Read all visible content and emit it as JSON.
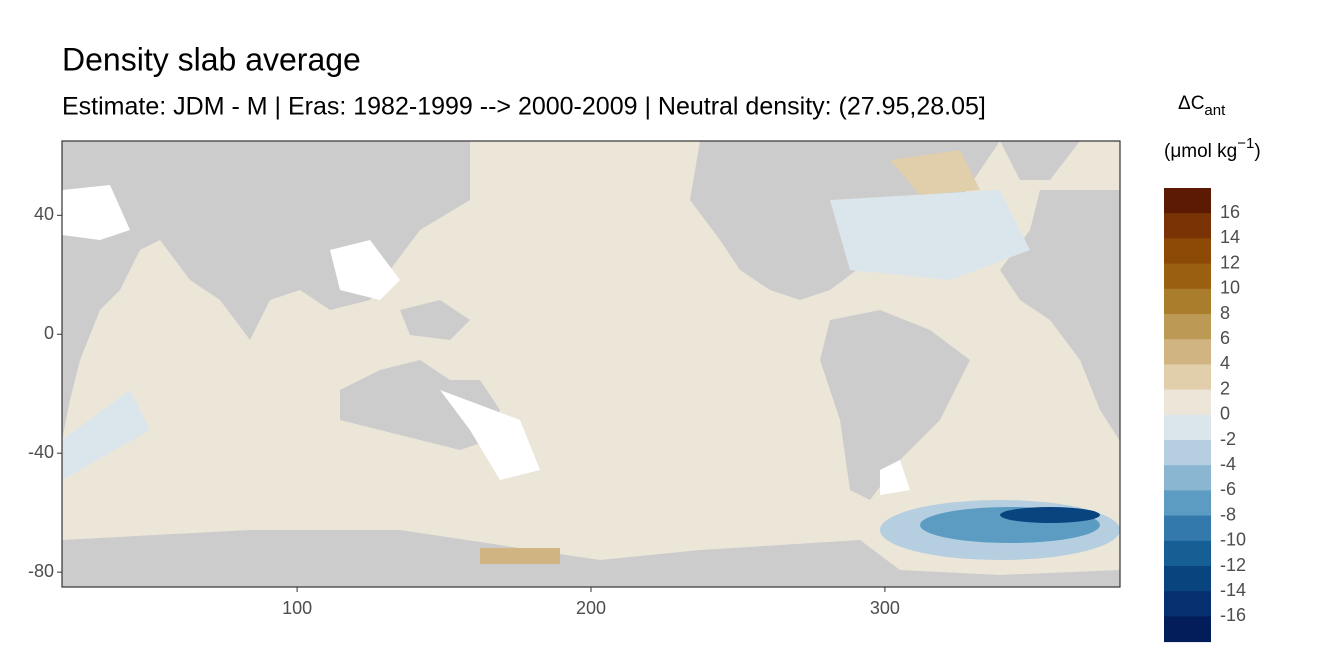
{
  "chart_data": {
    "type": "map",
    "title": "Density slab average",
    "subtitle": "Estimate: JDM - M | Eras: 1982-1999 --> 2000-2009 | Neutral density: (27.95,28.05]",
    "xlim": [
      20,
      380
    ],
    "xticks": [
      100,
      200,
      300
    ],
    "ylim": [
      -85,
      65
    ],
    "yticks": [
      40,
      0,
      -40,
      -80
    ],
    "legend": {
      "title_parts": [
        "ΔC",
        "ant",
        "(μmol kg",
        "−1",
        ")"
      ],
      "labels": [
        16,
        14,
        12,
        10,
        8,
        6,
        4,
        2,
        0,
        -2,
        -4,
        -6,
        -8,
        -10,
        -12,
        -14,
        -16
      ],
      "colors": [
        "#5c1a05",
        "#7a3304",
        "#8c4a06",
        "#9a5f10",
        "#aa7d2c",
        "#bc9a55",
        "#d0b482",
        "#e0cfaa",
        "#ede6d8",
        "#dbe6ec",
        "#b5cfe0",
        "#8ab6d2",
        "#5c9bc2",
        "#3479ab",
        "#165f95",
        "#0a447f",
        "#052f6e",
        "#021d5a"
      ]
    }
  }
}
